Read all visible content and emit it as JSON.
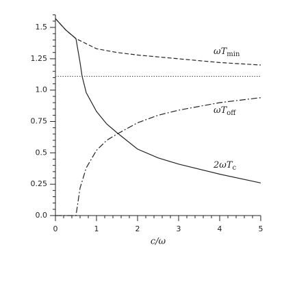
{
  "chart_data": {
    "type": "line",
    "x_label": "c/ω",
    "xlim": [
      0,
      5
    ],
    "ylim": [
      0,
      1.6
    ],
    "xticks": [
      0,
      1,
      2,
      3,
      4,
      5
    ],
    "yticks": [
      {
        "value": 0,
        "label": "0.0"
      },
      0.25,
      0.5,
      0.75,
      {
        "value": 1,
        "label": "1.0"
      },
      1.25,
      1.5
    ],
    "series": [
      {
        "name": "ωT",
        "sub": "min",
        "color": "#222",
        "style": "dashed",
        "x": [
          0,
          0.25,
          0.5,
          1,
          1.5,
          2,
          3,
          4,
          5
        ],
        "values": [
          1.57,
          1.48,
          1.41,
          1.33,
          1.3,
          1.28,
          1.25,
          1.22,
          1.2
        ]
      },
      {
        "name": "ωT",
        "sub": "off",
        "color": "#222",
        "style": "dashdot",
        "x": [
          0,
          0.5,
          0.6,
          0.75,
          1,
          1.25,
          1.5,
          2,
          2.5,
          3,
          4,
          5
        ],
        "values": [
          0,
          0,
          0.22,
          0.38,
          0.52,
          0.6,
          0.65,
          0.74,
          0.8,
          0.84,
          0.9,
          0.94
        ]
      },
      {
        "name": "2ωT",
        "sub": "c",
        "color": "#222",
        "style": "solid",
        "x": [
          0,
          0.25,
          0.5,
          0.6,
          0.65,
          0.75,
          1,
          1.25,
          1.5,
          2,
          2.5,
          3,
          4,
          5
        ],
        "values": [
          1.57,
          1.48,
          1.41,
          1.22,
          1.11,
          0.98,
          0.83,
          0.73,
          0.66,
          0.53,
          0.46,
          0.41,
          0.33,
          0.26
        ]
      }
    ],
    "hline": {
      "value": 1.11,
      "color": "#444",
      "style": "dotted"
    }
  }
}
